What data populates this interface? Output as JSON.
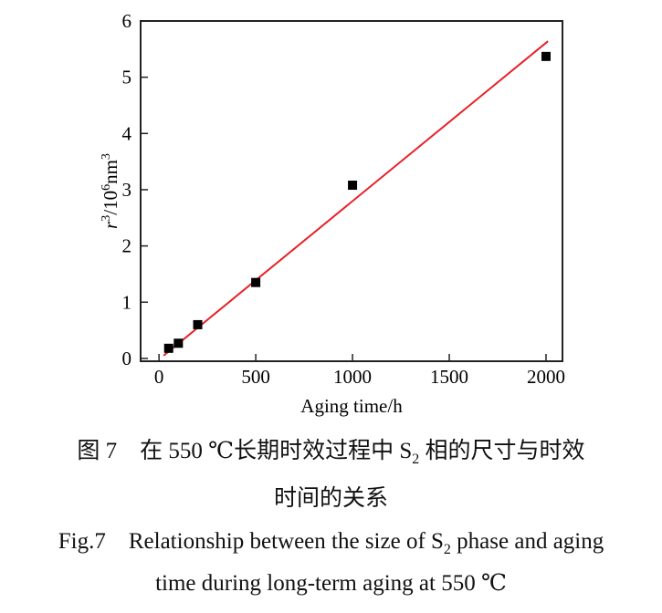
{
  "chart_data": {
    "type": "scatter",
    "xlabel": "Aging time/h",
    "ylabel_parts": {
      "r": "r",
      "sup1": "3",
      "mid": "/10",
      "sup2": "6",
      "unit": "nm",
      "sup3": "3"
    },
    "xlim": [
      -95,
      2085
    ],
    "ylim": [
      -0.05,
      6
    ],
    "xticks": [
      0,
      500,
      1000,
      1500,
      2000
    ],
    "yticks": [
      0,
      1,
      2,
      3,
      4,
      5,
      6
    ],
    "grid": false,
    "points": {
      "x": [
        50,
        100,
        200,
        500,
        1000,
        2000
      ],
      "y": [
        0.18,
        0.27,
        0.6,
        1.35,
        3.08,
        5.37
      ],
      "color": "#000000",
      "marker": "square"
    },
    "fit_line": {
      "x": [
        24,
        2010
      ],
      "y": [
        0.05,
        5.64
      ],
      "color": "#e8202a"
    }
  },
  "caption": {
    "cn_line1_a": "图 7　在 550 ℃长期时效过程中 S",
    "cn_line1_sub": "2",
    "cn_line1_b": " 相的尺寸与时效",
    "cn_line2": "时间的关系",
    "en_line1_a": "Fig.7　Relationship between the size of S",
    "en_line1_sub": "2",
    "en_line1_b": " phase and aging",
    "en_line2": "time during long-term aging at 550 ℃"
  }
}
